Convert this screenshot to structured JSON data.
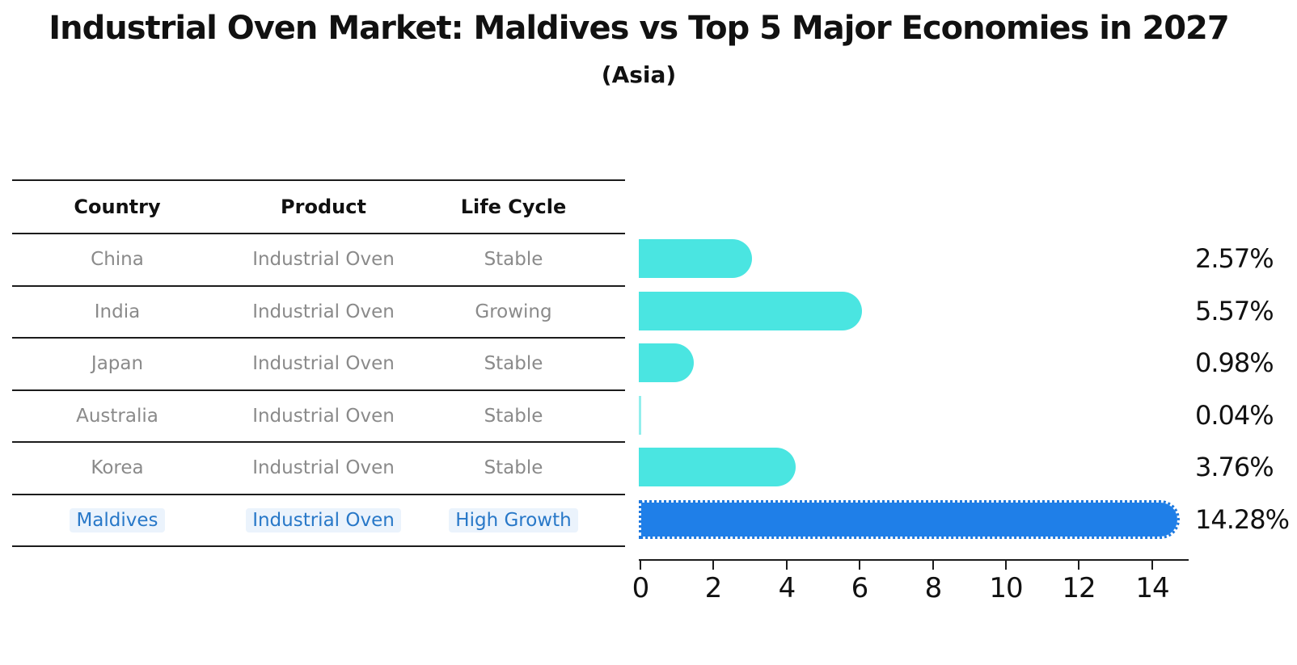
{
  "title": "Industrial Oven Market: Maldives vs Top 5 Major Economies in 2027",
  "subtitle": "(Asia)",
  "table": {
    "headers": [
      "Country",
      "Product",
      "Life Cycle"
    ],
    "rows": [
      {
        "country": "China",
        "product": "Industrial Oven",
        "life_cycle": "Stable",
        "highlight": false
      },
      {
        "country": "India",
        "product": "Industrial Oven",
        "life_cycle": "Growing",
        "highlight": false
      },
      {
        "country": "Japan",
        "product": "Industrial Oven",
        "life_cycle": "Stable",
        "highlight": false
      },
      {
        "country": "Australia",
        "product": "Industrial Oven",
        "life_cycle": "Stable",
        "highlight": false
      },
      {
        "country": "Korea",
        "product": "Industrial Oven",
        "life_cycle": "Stable",
        "highlight": false
      },
      {
        "country": "Maldives",
        "product": "Industrial Oven",
        "life_cycle": "High Growth",
        "highlight": true
      }
    ]
  },
  "chart_data": {
    "type": "bar",
    "orientation": "horizontal",
    "title": "Industrial Oven Market: Maldives vs Top 5 Major Economies in 2027",
    "subtitle": "(Asia)",
    "categories": [
      "China",
      "India",
      "Japan",
      "Australia",
      "Korea",
      "Maldives"
    ],
    "values": [
      2.57,
      5.57,
      0.98,
      0.04,
      3.76,
      14.28
    ],
    "value_labels": [
      "2.57%",
      "5.57%",
      "0.98%",
      "0.04%",
      "3.76%",
      "14.28%"
    ],
    "highlight_category": "Maldives",
    "x_ticks": [
      "0",
      "2",
      "4",
      "6",
      "8",
      "10",
      "12",
      "14"
    ],
    "x_tick_values": [
      0,
      2,
      4,
      6,
      8,
      10,
      12,
      14
    ],
    "xlim": [
      0,
      15
    ],
    "grid": false,
    "legend": false,
    "bar_color": "#4ae5e1",
    "highlight_bar_color": "#1f7fe8",
    "highlight_text_color": "#2878c8",
    "table_text_color": "#8a8a8a",
    "axis_color": "#1c1c1c"
  }
}
